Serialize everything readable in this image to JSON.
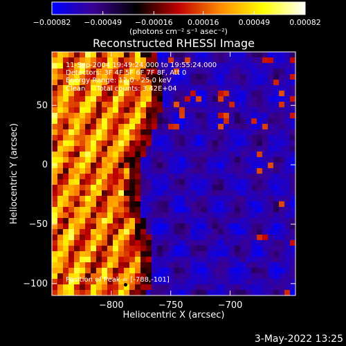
{
  "chart_data": {
    "type": "heatmap",
    "title": "Reconstructed RHESSI Image",
    "xlabel": "Heliocentric X (arcsec)",
    "ylabel": "Heliocentric Y (arcsec)",
    "xlim": [
      -850,
      -645
    ],
    "ylim": [
      -110,
      95
    ],
    "x_ticks": [
      -800,
      -750,
      -700
    ],
    "x_tick_labels": [
      "−800",
      "−750",
      "−700"
    ],
    "y_ticks": [
      50,
      0,
      -50,
      -100
    ],
    "y_tick_labels": [
      "50",
      "0",
      "−50",
      "−100"
    ],
    "colorbar": {
      "range": [
        -0.00082,
        0.00082
      ],
      "ticks": [
        -0.00082,
        -0.00049,
        -0.00016,
        0.00016,
        0.00049,
        0.00082
      ],
      "tick_labels": [
        "−0.00082",
        "−0.00049",
        "−0.00016",
        "0.00016",
        "0.00049",
        "0.00082"
      ],
      "unit_label": "(photons cm⁻² s⁻¹ asec⁻²)",
      "colormap": [
        "#0000ff",
        "#3a0090",
        "#000000",
        "#c00000",
        "#ff8c00",
        "#ffff00",
        "#ffffff"
      ]
    },
    "annotations": [
      "11-Sep-2004 19:49:24.000 to 19:55:24.000",
      "Detectors: 3F 4F 5F 6F 7F 8F, Att 0",
      "Energy Range: 12.0 - 25.0 keV",
      "Clean     Total counts: 3.42E+04"
    ],
    "peak_label": "Position of Peak = [-788,-101]",
    "peak": {
      "x": -788,
      "y": -101
    },
    "grid": false
  },
  "timestamp": "3-May-2022 13:25"
}
